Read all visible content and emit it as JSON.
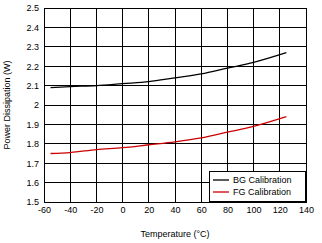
{
  "chart_data": {
    "type": "line",
    "x_label": "Temperature (°C)",
    "y_label": "Power Dissipation (W)",
    "x": [
      -55,
      -40,
      -20,
      0,
      20,
      40,
      60,
      80,
      100,
      125
    ],
    "series": [
      {
        "name": "BG Calibration",
        "color": "#000000",
        "values": [
          2.09,
          2.095,
          2.1,
          2.11,
          2.12,
          2.14,
          2.16,
          2.19,
          2.22,
          2.27
        ]
      },
      {
        "name": "FG Calibration",
        "color": "#cc0000",
        "values": [
          1.75,
          1.755,
          1.77,
          1.78,
          1.795,
          1.81,
          1.83,
          1.86,
          1.89,
          1.94
        ]
      }
    ],
    "xlim": [
      -60,
      140
    ],
    "xticks": [
      -60,
      -40,
      -20,
      0,
      20,
      40,
      60,
      80,
      100,
      120,
      140
    ],
    "ylim": [
      1.5,
      2.5
    ],
    "yticks": [
      1.5,
      1.6,
      1.7,
      1.8,
      1.9,
      2,
      2.1,
      2.2,
      2.3,
      2.4,
      2.5
    ],
    "grid": true,
    "legend": "lower right"
  }
}
